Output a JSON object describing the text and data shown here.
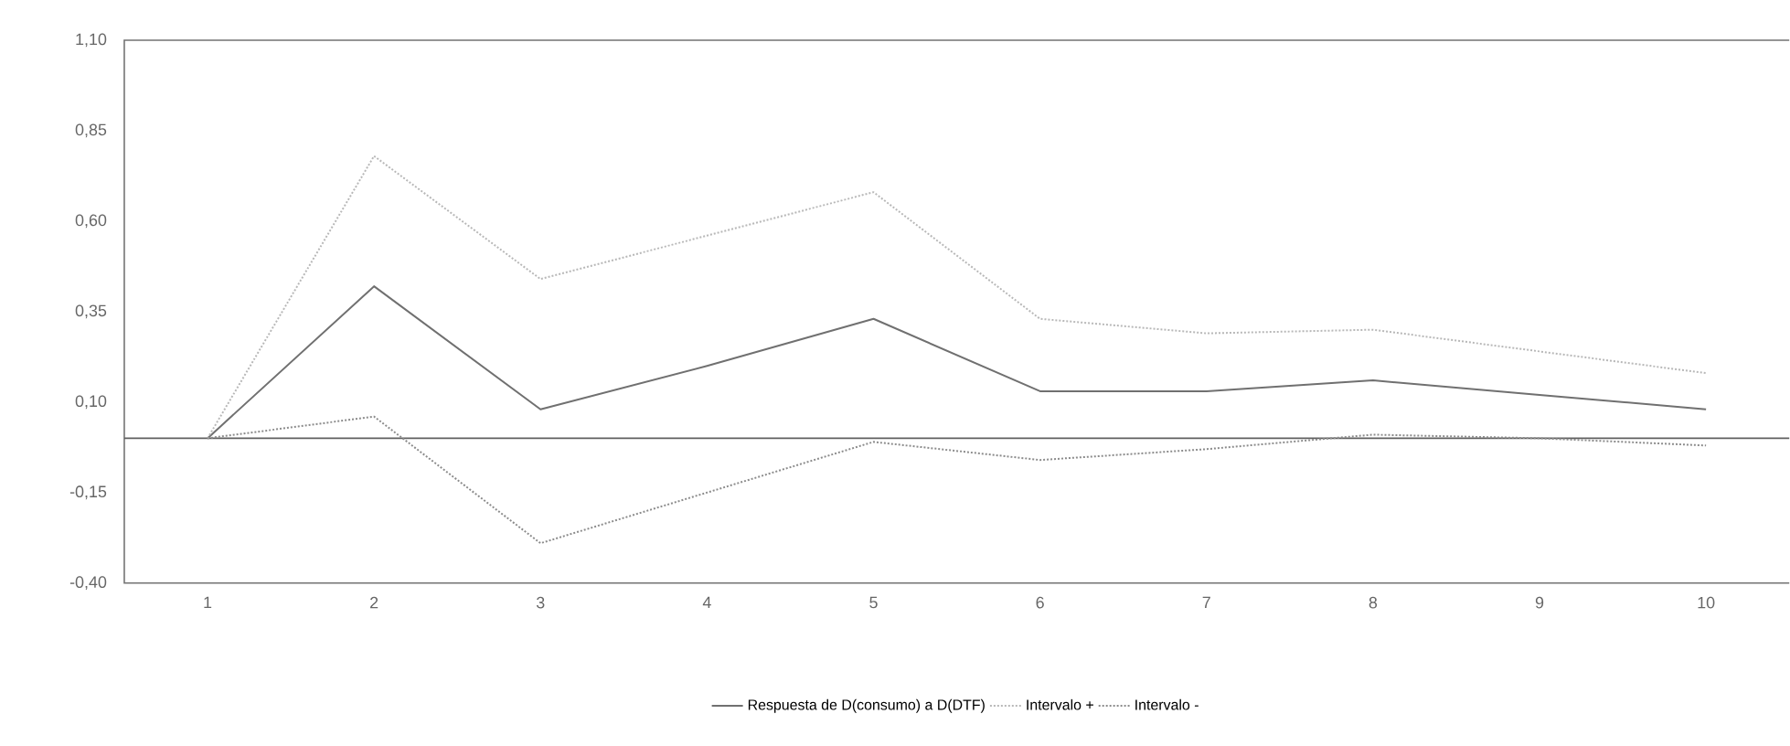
{
  "chart_data": {
    "type": "line",
    "categories": [
      "1",
      "2",
      "3",
      "4",
      "5",
      "6",
      "7",
      "8",
      "9",
      "10"
    ],
    "series": [
      {
        "name": "Respuesta de D(consumo) a D(DTF)",
        "color": "#707070",
        "line_style": "solid",
        "values": [
          0,
          0.42,
          0.08,
          0.2,
          0.33,
          0.13,
          0.13,
          0.16,
          0.12,
          0.08
        ]
      },
      {
        "name": "Intervalo +",
        "color": "#b8b8b8",
        "line_style": "dotted",
        "values": [
          0,
          0.78,
          0.44,
          0.56,
          0.68,
          0.33,
          0.29,
          0.3,
          0.24,
          0.18
        ]
      },
      {
        "name": "Intervalo -",
        "color": "#8c8c8c",
        "line_style": "dotted",
        "values": [
          0,
          0.06,
          -0.29,
          -0.15,
          -0.01,
          -0.06,
          -0.03,
          0.01,
          0.0,
          -0.02
        ]
      }
    ],
    "ylim": [
      -0.4,
      1.1
    ],
    "yticks": [
      {
        "value": -0.4,
        "label": "-0,40"
      },
      {
        "value": -0.15,
        "label": "-0,15"
      },
      {
        "value": 0.1,
        "label": "0,10"
      },
      {
        "value": 0.35,
        "label": "0,35"
      },
      {
        "value": 0.6,
        "label": "0,60"
      },
      {
        "value": 0.85,
        "label": "0,85"
      },
      {
        "value": 1.1,
        "label": "1,10"
      }
    ],
    "ref_lines": [
      {
        "axis": "y",
        "value": 0,
        "color": "#606060"
      }
    ],
    "grid": false,
    "legend": "bottom",
    "marker": "none"
  }
}
